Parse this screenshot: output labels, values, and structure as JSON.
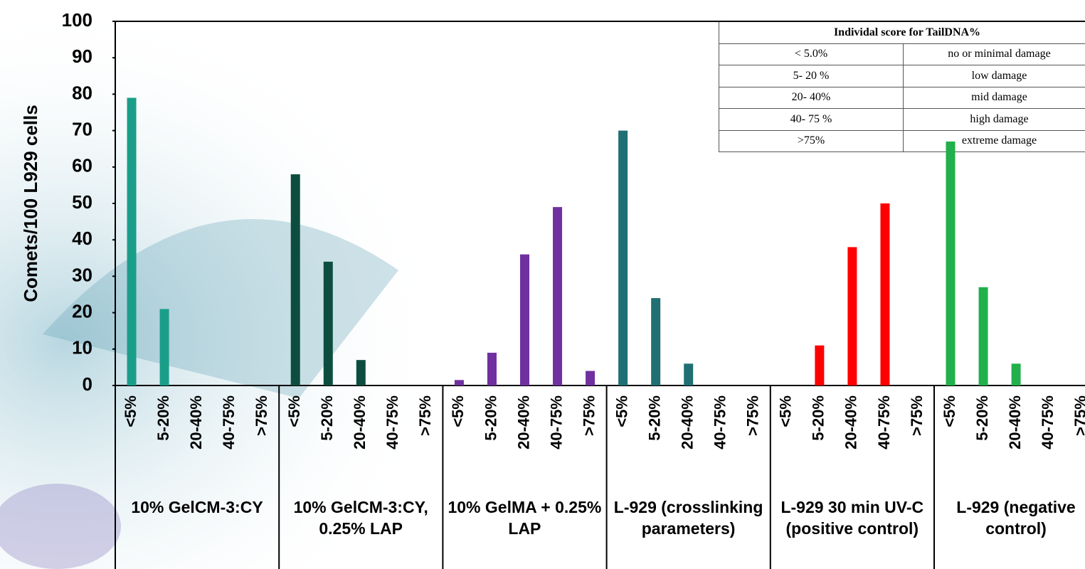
{
  "chart_data": {
    "type": "bar",
    "ylabel": "Comets/100 L929 cells",
    "categories": [
      "<5%",
      "5-20%",
      "20-40%",
      "40-75%",
      ">75%"
    ],
    "series": [
      {
        "name": "10% GelCM-3:CY",
        "color": "#1a9e8a",
        "values": [
          79,
          21,
          0,
          0,
          0
        ]
      },
      {
        "name": "10% GelCM-3:CY, 0.25% LAP",
        "color": "#0d4d3f",
        "values": [
          58,
          34,
          7,
          0,
          0
        ]
      },
      {
        "name": "10% GelMA + 0.25% LAP",
        "color": "#7030a0",
        "values": [
          1.5,
          9,
          36,
          49,
          4
        ]
      },
      {
        "name": "L-929 (crosslinking parameters)",
        "color": "#1f6f73",
        "values": [
          70,
          24,
          6,
          0,
          0
        ]
      },
      {
        "name": "L-929 30 min UV-C (positive control)",
        "color": "#ff0000",
        "values": [
          0,
          11,
          38,
          50,
          0
        ]
      },
      {
        "name": "L-929 (negative control)",
        "color": "#21b04b",
        "values": [
          67,
          27,
          6,
          0,
          0
        ]
      }
    ],
    "ylim": [
      0,
      100
    ],
    "yticks": [
      0,
      10,
      20,
      30,
      40,
      50,
      60,
      70,
      80,
      90,
      100
    ],
    "table": {
      "title": "Individal score for TailDNA%",
      "rows": [
        [
          "< 5.0%",
          "no or minimal damage"
        ],
        [
          "5- 20 %",
          "low damage"
        ],
        [
          "20- 40%",
          "mid damage"
        ],
        [
          "40- 75 %",
          "high damage"
        ],
        [
          ">75%",
          "extreme damage"
        ]
      ]
    }
  }
}
